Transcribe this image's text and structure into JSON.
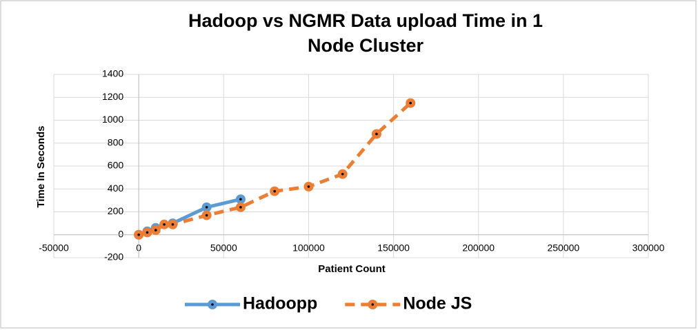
{
  "chart_data": {
    "type": "line",
    "title": "Hadoop vs NGMR Data upload Time in 1 Node Cluster",
    "x_label": "Patient Count",
    "y_label": "Time In Seconds",
    "xlim": [
      -50000,
      300000
    ],
    "xticks": [
      -50000,
      0,
      50000,
      100000,
      150000,
      200000,
      250000,
      300000
    ],
    "ylim": [
      -200,
      1400
    ],
    "yticks": [
      -200,
      0,
      200,
      400,
      600,
      800,
      1000,
      1200,
      1400
    ],
    "grid": true,
    "legend": "bottom",
    "series": [
      {
        "name": "Hadoopp",
        "color": "#5b9bd5",
        "dashed": false,
        "x": [
          0,
          5000,
          10000,
          20000,
          40000,
          60000
        ],
        "values": [
          0,
          30,
          60,
          100,
          240,
          310
        ]
      },
      {
        "name": "Node JS",
        "color": "#ed7d31",
        "dashed": true,
        "x": [
          0,
          5000,
          10000,
          15000,
          20000,
          40000,
          60000,
          80000,
          100000,
          120000,
          140000,
          160000
        ],
        "values": [
          0,
          20,
          40,
          90,
          90,
          170,
          240,
          380,
          420,
          530,
          880,
          1150
        ]
      }
    ]
  }
}
